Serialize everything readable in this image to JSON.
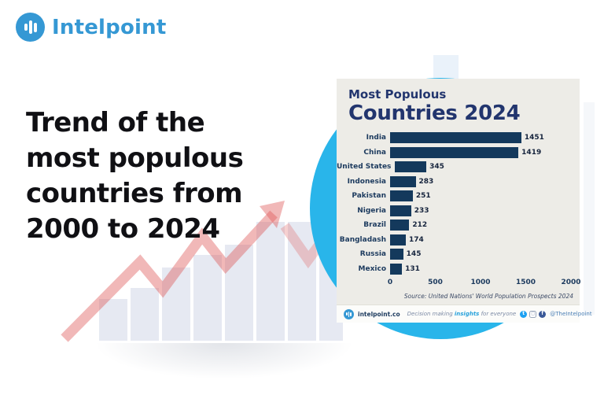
{
  "brand": {
    "name": "Intelpoint",
    "logo_icon": "bar-chart-icon",
    "accent_color": "#3598d4"
  },
  "headline": {
    "lines": [
      "Trend of the",
      "most populous",
      "countries from",
      "2000 to 2024"
    ]
  },
  "card": {
    "title_small": "Most Populous",
    "title_large": "Countries 2024",
    "source": "Source: United Nations' World Population Prospects 2024",
    "footer": {
      "site": "intelpoint.co",
      "tagline_prefix": "Decision making ",
      "tagline_highlight": "insights",
      "tagline_suffix": " for everyone",
      "handle": "@TheIntelpoint",
      "icons": [
        "twitter-icon",
        "instagram-icon",
        "facebook-icon"
      ]
    }
  },
  "chart_data": {
    "type": "bar",
    "orientation": "horizontal",
    "title": "Most Populous Countries 2024",
    "categories": [
      "India",
      "China",
      "United States",
      "Indonesia",
      "Pakistan",
      "Nigeria",
      "Brazil",
      "Bangladash",
      "Russia",
      "Mexico"
    ],
    "values": [
      1451,
      1419,
      345,
      283,
      251,
      233,
      212,
      174,
      145,
      131
    ],
    "xlabel": "",
    "ylabel": "",
    "xlim": [
      0,
      2000
    ],
    "xticks": [
      0,
      500,
      1000,
      1500,
      2000
    ],
    "grid": false,
    "legend": false,
    "bar_color": "#14395c"
  },
  "colors": {
    "card_background": "#edece7",
    "navy_title": "#22356e",
    "bar_navy": "#14395c",
    "cyan_circle": "#29b5ea",
    "headline_text": "#101014",
    "decor_red_arrow": "#dd5555",
    "decor_bars": "#e2e6f0"
  }
}
